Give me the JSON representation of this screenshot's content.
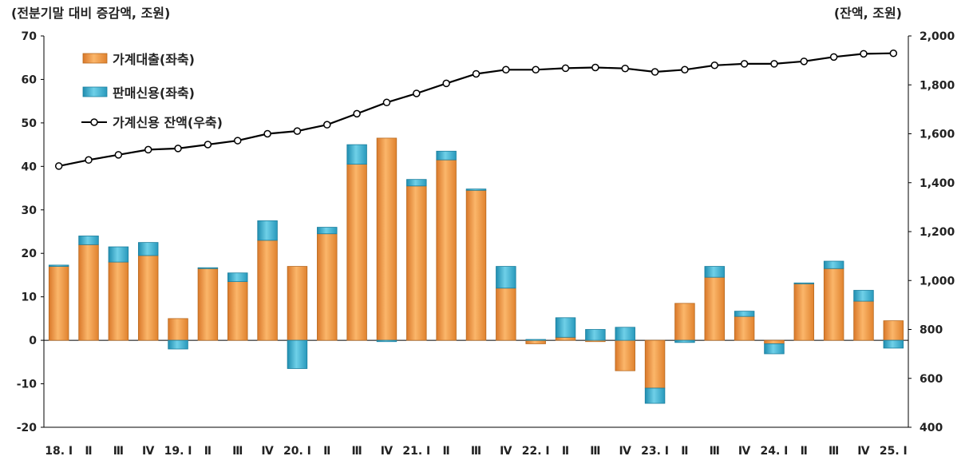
{
  "chart_data": {
    "type": "bar",
    "left_axis_title": "(전분기말 대비 증감액, 조원)",
    "right_axis_title": "(잔액, 조원)",
    "ylim_left": [
      -20,
      70
    ],
    "ylim_right": [
      400,
      2000
    ],
    "left_ticks": [
      "-20",
      "-10",
      "0",
      "10",
      "20",
      "30",
      "40",
      "50",
      "60",
      "70"
    ],
    "right_ticks": [
      "400",
      "600",
      "800",
      "1,000",
      "1,200",
      "1,400",
      "1,600",
      "1,800",
      "2,000"
    ],
    "categories": [
      "18. Ⅰ",
      "Ⅱ",
      "Ⅲ",
      "Ⅳ",
      "19. Ⅰ",
      "Ⅱ",
      "Ⅲ",
      "Ⅳ",
      "20. Ⅰ",
      "Ⅱ",
      "Ⅲ",
      "Ⅳ",
      "21. Ⅰ",
      "Ⅱ",
      "Ⅲ",
      "Ⅳ",
      "22. Ⅰ",
      "Ⅱ",
      "Ⅲ",
      "Ⅳ",
      "23. Ⅰ",
      "Ⅱ",
      "Ⅲ",
      "Ⅳ",
      "24. Ⅰ",
      "Ⅱ",
      "Ⅲ",
      "Ⅳ",
      "25. Ⅰ"
    ],
    "series": [
      {
        "name": "가계대출(좌축)",
        "kind": "stacked-bar",
        "axis": "left",
        "color": "#f39a3c",
        "values": [
          17.0,
          22.0,
          18.0,
          19.5,
          5.0,
          16.5,
          13.5,
          23.0,
          17.0,
          24.5,
          40.5,
          46.5,
          35.5,
          41.5,
          34.5,
          12.0,
          -0.8,
          0.7,
          -0.3,
          -7.0,
          -11.0,
          8.5,
          14.5,
          5.5,
          -0.8,
          13.0,
          16.5,
          9.0,
          4.5
        ]
      },
      {
        "name": "판매신용(좌축)",
        "kind": "stacked-bar",
        "axis": "left",
        "color": "#3aaecb",
        "values": [
          0.3,
          2.0,
          3.5,
          3.0,
          -2.0,
          0.2,
          2.0,
          4.5,
          -6.5,
          1.5,
          4.5,
          -0.3,
          1.5,
          2.0,
          0.3,
          5.0,
          0.2,
          4.5,
          2.5,
          3.0,
          -3.5,
          -0.5,
          2.5,
          1.2,
          -2.3,
          0.2,
          1.7,
          2.5,
          -1.8
        ]
      },
      {
        "name": "가계신용 잔액(우축)",
        "kind": "line",
        "axis": "right",
        "color": "#000000",
        "values": [
          1468,
          1493,
          1514,
          1535,
          1540,
          1556,
          1572,
          1600,
          1611,
          1637,
          1682,
          1728,
          1765,
          1806,
          1845,
          1862,
          1862,
          1868,
          1871,
          1867,
          1853,
          1862,
          1880,
          1886,
          1886,
          1896,
          1914,
          1927,
          1929
        ]
      }
    ],
    "grid": false,
    "legend_position": "top-left"
  }
}
